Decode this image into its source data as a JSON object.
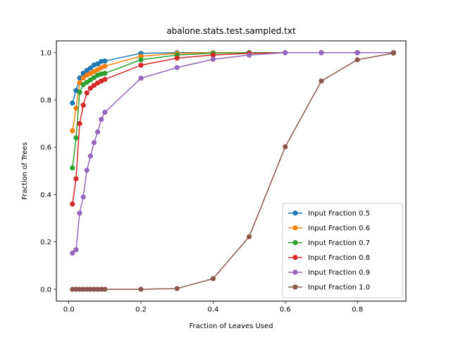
{
  "chart_data": {
    "type": "line",
    "title": "abalone.stats.test.sampled.txt",
    "xlabel": "Fraction of Leaves Used",
    "ylabel": "Fraction of Trees",
    "xlim": [
      -0.0345,
      0.9345
    ],
    "ylim": [
      -0.05,
      1.05
    ],
    "xticks": [
      "0.0",
      "0.2",
      "0.4",
      "0.6",
      "0.8"
    ],
    "xtick_values": [
      0.0,
      0.2,
      0.4,
      0.6,
      0.8
    ],
    "yticks": [
      "0.0",
      "0.2",
      "0.4",
      "0.6",
      "0.8",
      "1.0"
    ],
    "ytick_values": [
      0.0,
      0.2,
      0.4,
      0.6,
      0.8,
      1.0
    ],
    "grid": false,
    "legend_position": "lower-right",
    "x": [
      0.01,
      0.02,
      0.03,
      0.04,
      0.05,
      0.06,
      0.07,
      0.08,
      0.09,
      0.1,
      0.2,
      0.3,
      0.4,
      0.5,
      0.6,
      0.7,
      0.8,
      0.9
    ],
    "series": [
      {
        "name": "Input Fraction 0.5",
        "color": "#1f77b4",
        "values": [
          0.787,
          0.84,
          0.893,
          0.913,
          0.925,
          0.935,
          0.948,
          0.953,
          0.963,
          0.965,
          0.997,
          1.0,
          1.0,
          1.0,
          1.0,
          1.0,
          1.0,
          1.0
        ]
      },
      {
        "name": "Input Fraction 0.6",
        "color": "#ff7f0e",
        "values": [
          0.67,
          0.765,
          0.873,
          0.893,
          0.905,
          0.912,
          0.92,
          0.928,
          0.937,
          0.943,
          0.985,
          0.997,
          1.0,
          1.0,
          1.0,
          1.0,
          1.0,
          1.0
        ]
      },
      {
        "name": "Input Fraction 0.7",
        "color": "#2ca02c",
        "values": [
          0.513,
          0.64,
          0.833,
          0.865,
          0.875,
          0.885,
          0.895,
          0.905,
          0.91,
          0.913,
          0.97,
          0.99,
          0.998,
          1.0,
          1.0,
          1.0,
          1.0,
          1.0
        ]
      },
      {
        "name": "Input Fraction 0.8",
        "color": "#d62728",
        "values": [
          0.36,
          0.467,
          0.7,
          0.778,
          0.83,
          0.85,
          0.862,
          0.872,
          0.88,
          0.887,
          0.947,
          0.977,
          0.99,
          0.997,
          1.0,
          1.0,
          1.0,
          1.0
        ]
      },
      {
        "name": "Input Fraction 0.9",
        "color": "#9467bd",
        "values": [
          0.153,
          0.167,
          0.322,
          0.39,
          0.503,
          0.563,
          0.62,
          0.665,
          0.718,
          0.748,
          0.892,
          0.937,
          0.972,
          0.99,
          1.0,
          1.0,
          1.0,
          1.0
        ]
      },
      {
        "name": "Input Fraction 1.0",
        "color": "#8c564b",
        "values": [
          0.0,
          0.0,
          0.0,
          0.0,
          0.0,
          0.0,
          0.0,
          0.0,
          0.0,
          0.0,
          0.0,
          0.003,
          0.045,
          0.222,
          0.602,
          0.88,
          0.97,
          0.998
        ]
      }
    ]
  }
}
